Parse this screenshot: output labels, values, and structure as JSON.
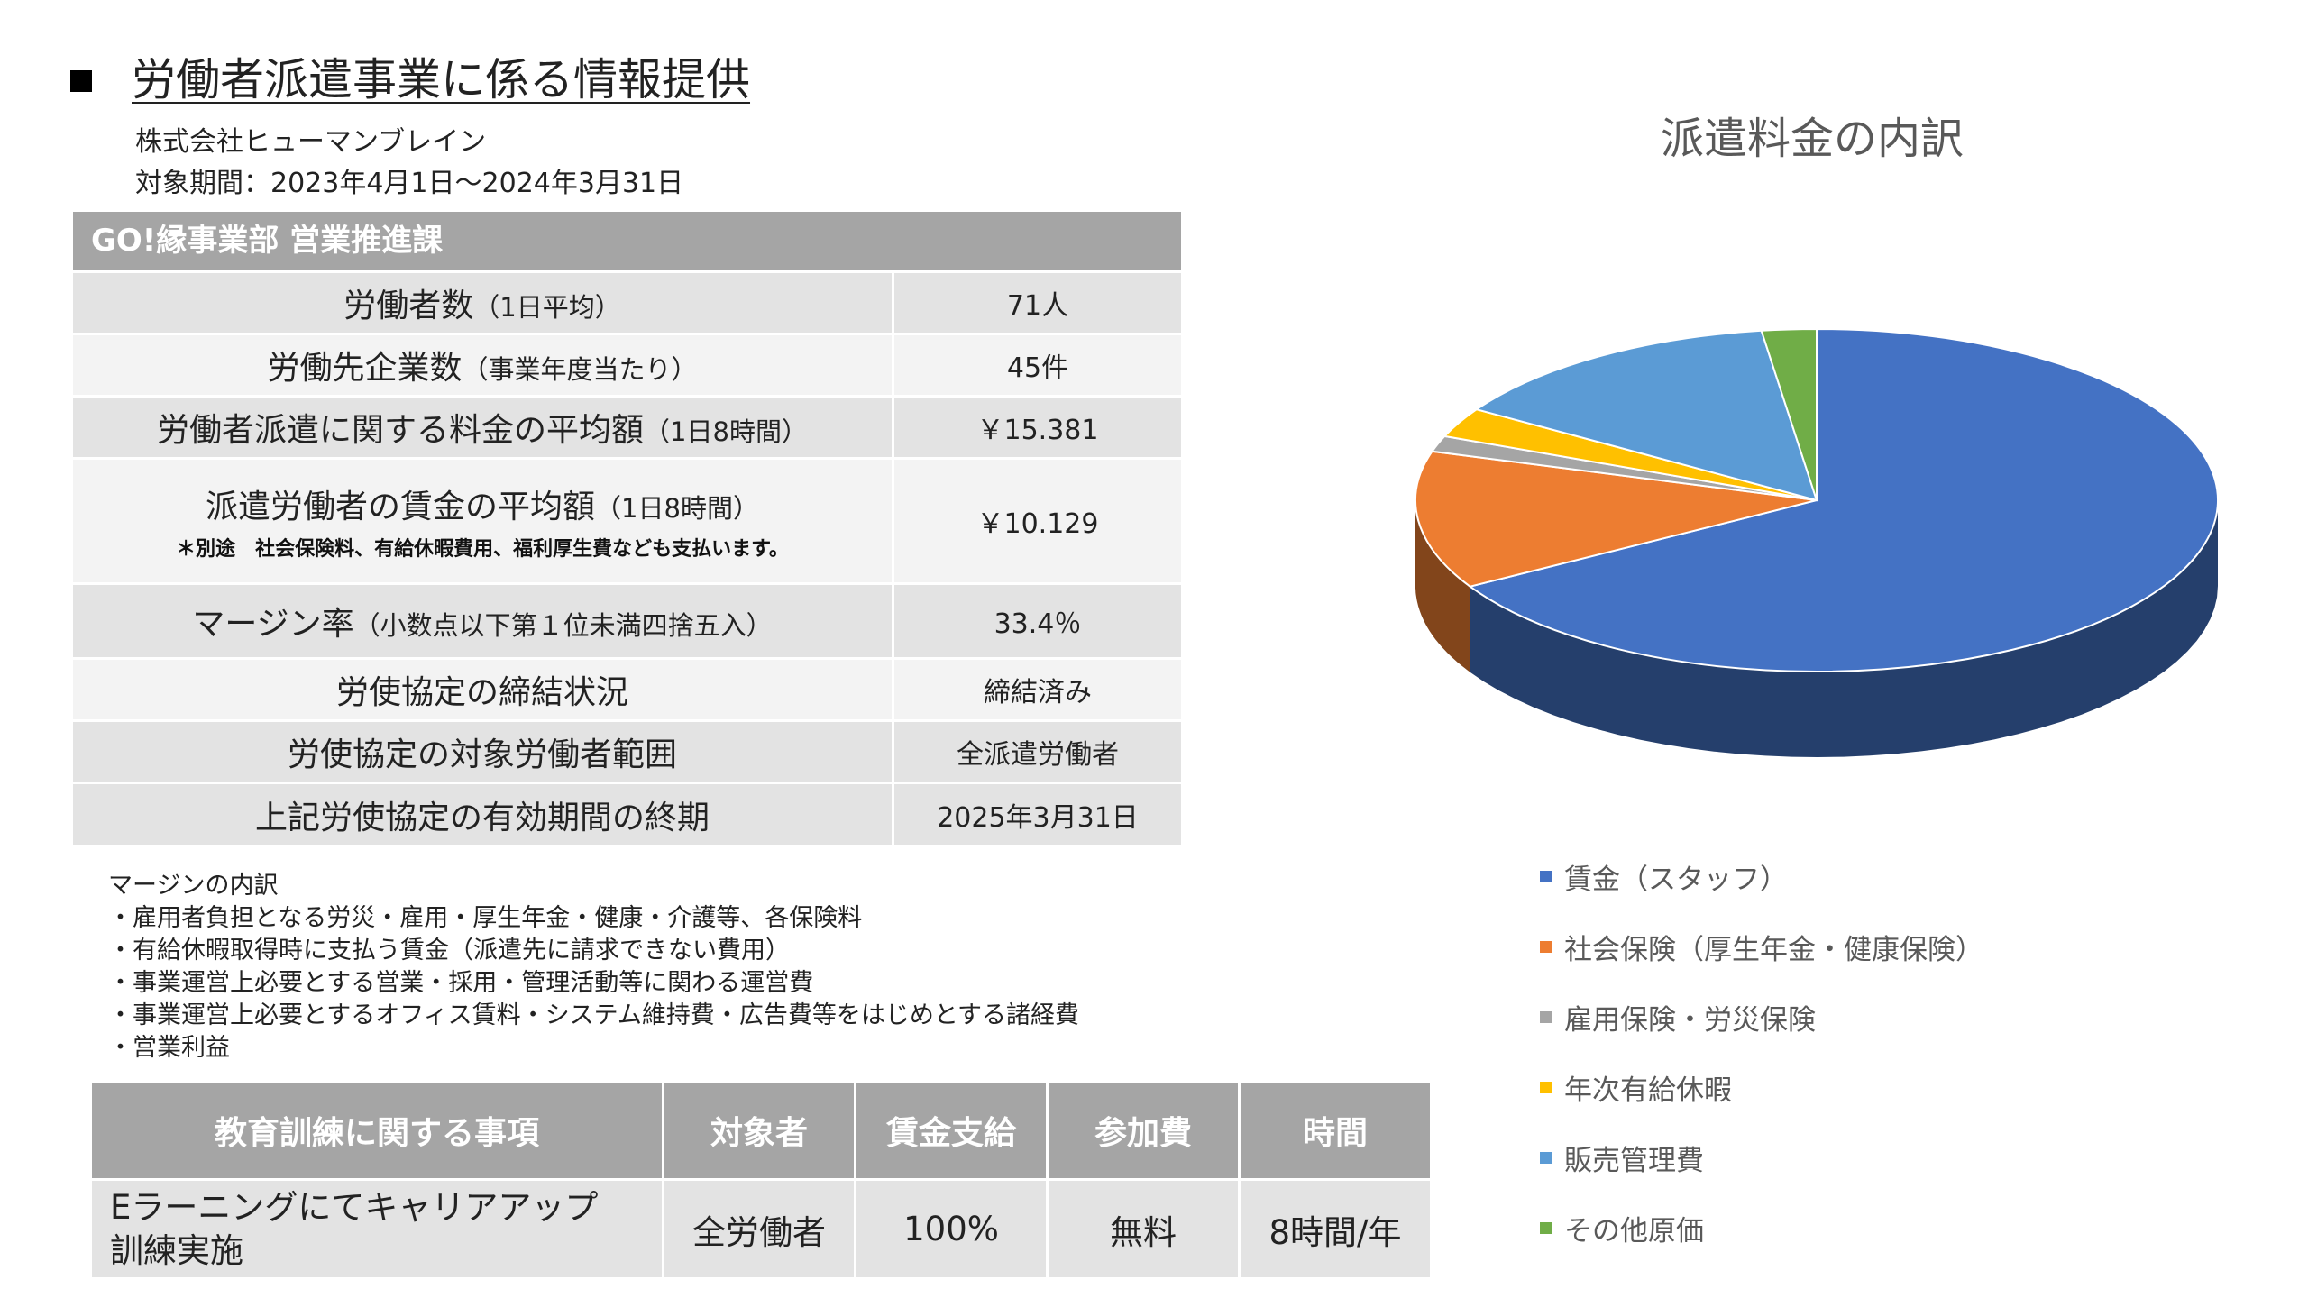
{
  "header": {
    "title": "労働者派遣事業に係る情報提供",
    "company": "株式会社ヒューマンブレイン",
    "period": "対象期間：2023年4月1日～2024年3月31日"
  },
  "info_table": {
    "department": "GO!縁事業部 営業推進課",
    "rows": [
      {
        "label": "労働者数",
        "label_small": "（1日平均）",
        "value": "71人"
      },
      {
        "label": "労働先企業数",
        "label_small": "（事業年度当たり）",
        "value": "45件"
      },
      {
        "label": "労働者派遣に関する料金の平均額",
        "label_small": "（1日8時間）",
        "value": "￥15.381"
      },
      {
        "label": "派遣労働者の賃金の平均額",
        "label_small": "（1日8時間）",
        "note": "＊別途　社会保険料、有給休暇費用、福利厚生費なども支払います。",
        "value": "￥10.129"
      },
      {
        "label": "マージン率",
        "label_small": "（小数点以下第１位未満四捨五入）",
        "value": "33.4％"
      },
      {
        "label": "労使協定の締結状況",
        "label_small": "",
        "value": "締結済み"
      },
      {
        "label": "労使協定の対象労働者範囲",
        "label_small": "",
        "value": "全派遣労働者"
      },
      {
        "label": "上記労使協定の有効期間の終期",
        "label_small": "",
        "value": "2025年3月31日"
      }
    ]
  },
  "margin_breakdown": {
    "title": "マージンの内訳",
    "items": [
      "・雇用者負担となる労災・雇用・厚生年金・健康・介護等、各保険料",
      "・有給休暇取得時に支払う賃金（派遣先に請求できない費用）",
      "・事業運営上必要とする営業・採用・管理活動等に関わる運営費",
      "・事業運営上必要とするオフィス賃料・システム維持費・広告費等をはじめとする諸経費",
      "・営業利益"
    ]
  },
  "training_table": {
    "headers": [
      "教育訓練に関する事項",
      "対象者",
      "賃金支給",
      "参加費",
      "時間"
    ],
    "row": {
      "item_line1": "Eラーニングにてキャリアアップ",
      "item_line2": "訓練実施",
      "target": "全労働者",
      "wage": "100%",
      "fee": "無料",
      "time": "8時間/年"
    }
  },
  "chart_data": {
    "type": "pie",
    "title": "派遣料金の内訳",
    "categories": [
      "賃金（スタッフ）",
      "社会保険（厚生年金・健康保険）",
      "雇用保険・労災保険",
      "年次有給休暇",
      "販売管理費",
      "その他原価"
    ],
    "values": [
      66.6,
      13.0,
      1.5,
      2.8,
      13.9,
      2.2
    ],
    "unit": "%",
    "colors": [
      "#4472c4",
      "#ed7d31",
      "#a5a5a5",
      "#ffc000",
      "#5b9bd5",
      "#70ad47"
    ],
    "style": "3d",
    "legend_position": "bottom-left"
  }
}
